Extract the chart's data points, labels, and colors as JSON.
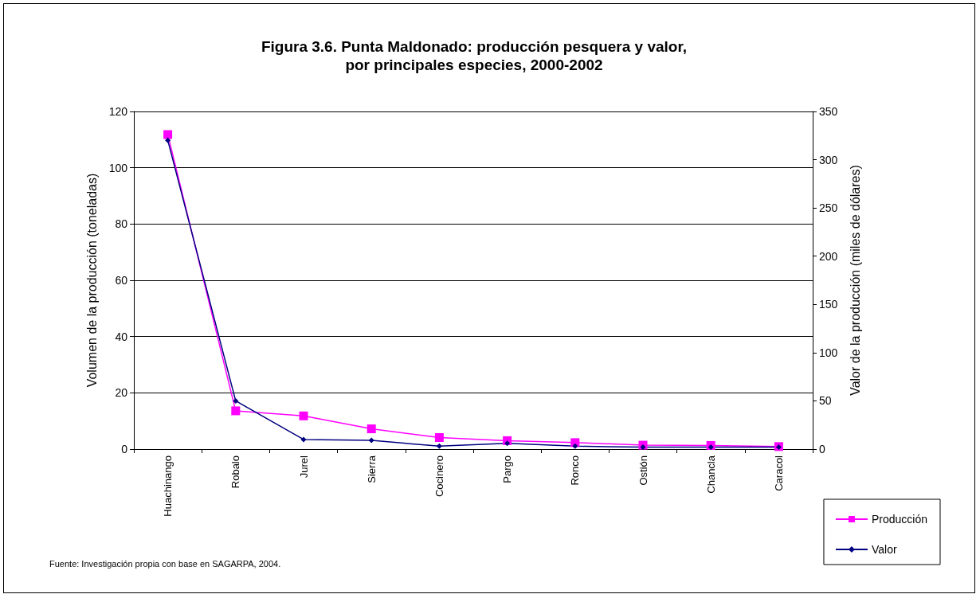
{
  "chart_data": {
    "type": "line",
    "title": "Figura 3.6. Punta Maldonado: producción pesquera y valor,\npor principales especies, 2000-2002",
    "categories": [
      "Huachinango",
      "Robalo",
      "Jurel",
      "Sierra",
      "Cocinero",
      "Pargo",
      "Ronco",
      "Ostión",
      "Chancla",
      "Caracol"
    ],
    "series": [
      {
        "name": "Producción",
        "color": "#ff00ff",
        "marker": "square",
        "values": [
          111.8,
          13.6,
          11.8,
          7.2,
          4.1,
          3.0,
          2.3,
          1.4,
          1.3,
          0.9
        ]
      },
      {
        "name": "Valor",
        "color": "#000080",
        "marker": "diamond",
        "axis": "y2",
        "values": [
          320,
          50,
          10,
          9,
          3,
          6,
          3,
          2,
          2,
          2
        ]
      }
    ],
    "ylabel": "Volumen de la producción (toneladas)",
    "y2label": "Valor de la producción (miles de dólares)",
    "ylim": [
      0,
      120
    ],
    "yticks": [
      0,
      20,
      40,
      60,
      80,
      100,
      120
    ],
    "y2lim": [
      0,
      350
    ],
    "y2ticks": [
      0,
      50,
      100,
      150,
      200,
      250,
      300,
      350
    ],
    "grid": "y",
    "legend": "bottom right",
    "line_style": "solid",
    "annotations": [
      "Fuente: Investigación propia con base en SAGARPA, 2004."
    ]
  }
}
